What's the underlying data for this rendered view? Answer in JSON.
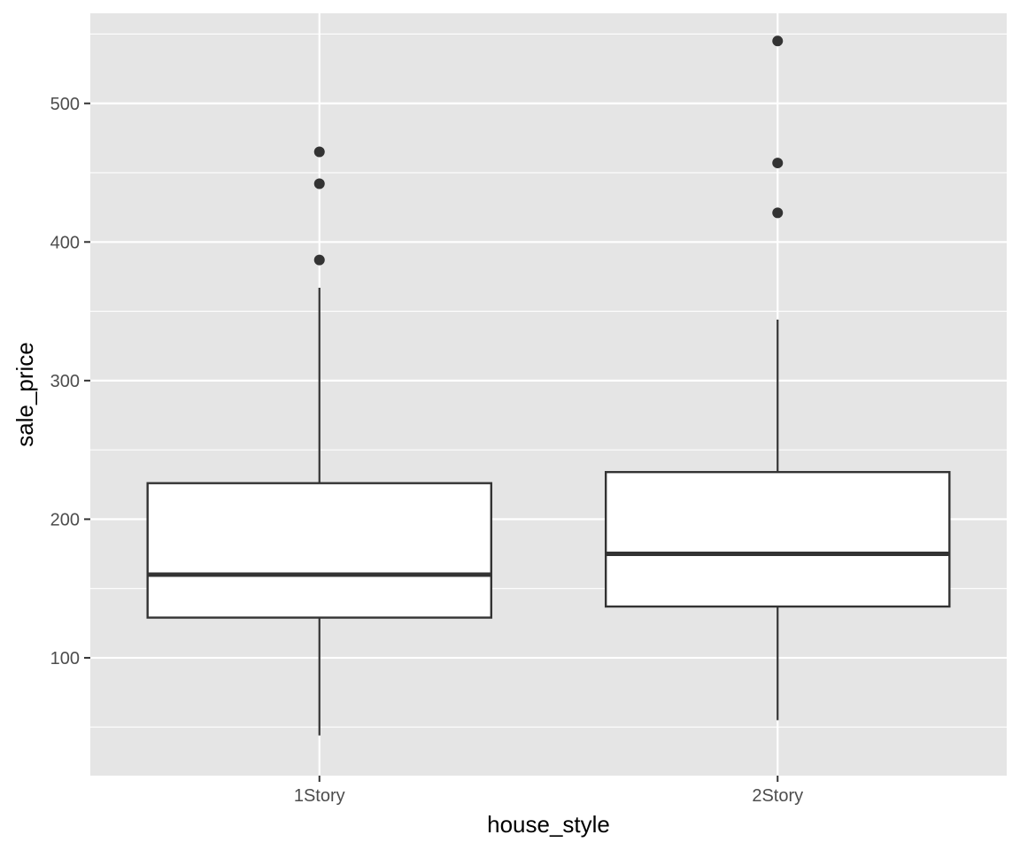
{
  "chart_data": {
    "type": "boxplot",
    "title": "",
    "xlabel": "house_style",
    "ylabel": "sale_price",
    "categories": [
      "1Story",
      "2Story"
    ],
    "ylim": [
      15,
      565
    ],
    "y_ticks": [
      100,
      200,
      300,
      400,
      500
    ],
    "grid": true,
    "legend": "none",
    "boxes": [
      {
        "category": "1Story",
        "whisker_low": 44,
        "q1": 129,
        "median": 160,
        "q3": 226,
        "whisker_high": 367,
        "outliers": [
          387,
          442,
          465
        ]
      },
      {
        "category": "2Story",
        "whisker_low": 55,
        "q1": 137,
        "median": 175,
        "q3": 234,
        "whisker_high": 344,
        "outliers": [
          421,
          457,
          545
        ]
      }
    ],
    "colors": {
      "panel_background": "#e5e5e5",
      "grid_line": "#ffffff",
      "box_fill": "#ffffff",
      "box_line": "#333333",
      "outlier_point": "#333333"
    }
  }
}
